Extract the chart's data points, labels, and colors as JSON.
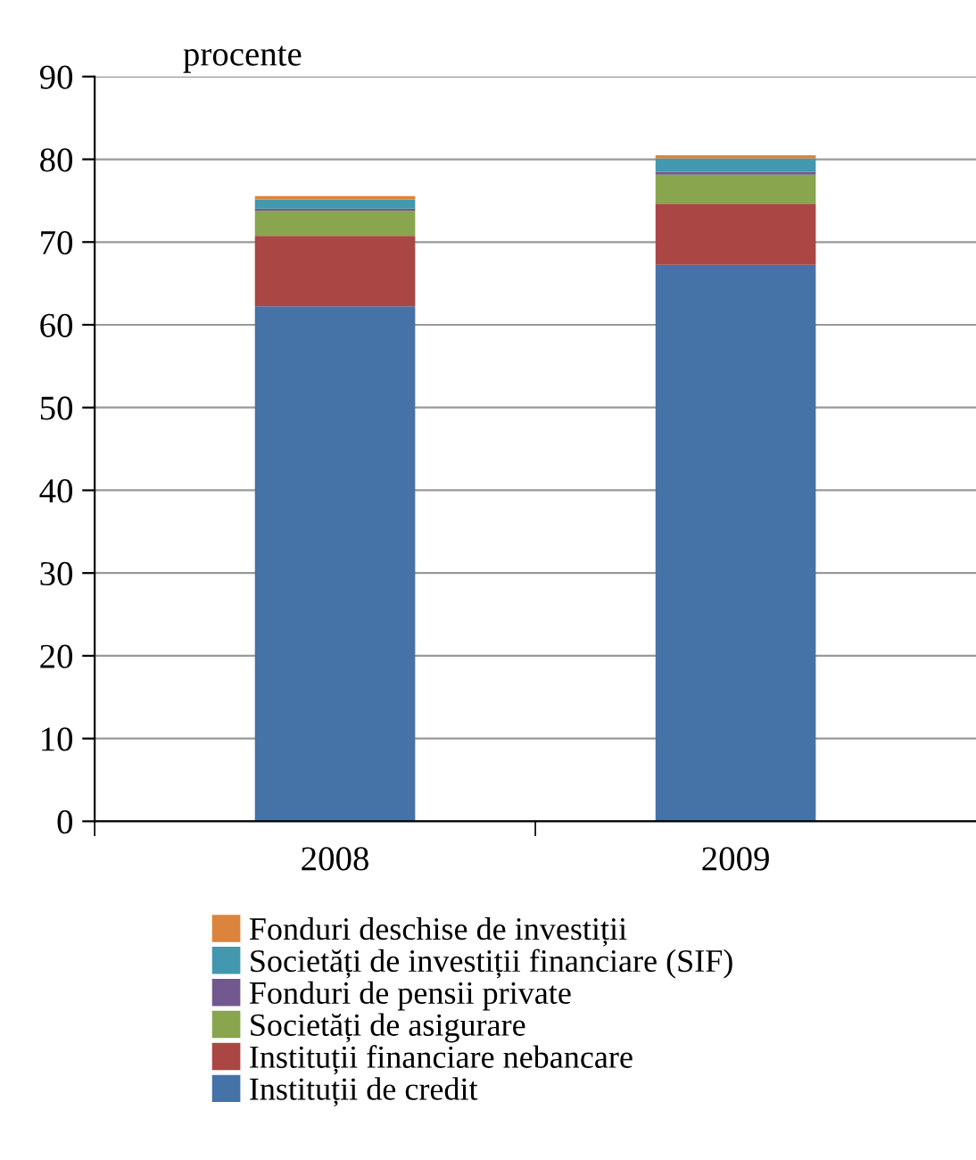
{
  "chart_data": {
    "type": "bar",
    "stacked": true,
    "ylabel": "procente",
    "categories": [
      "2008",
      "2009"
    ],
    "series": [
      {
        "name": "Instituții de credit",
        "color": "#4572a7",
        "values": [
          62.25,
          67.25
        ]
      },
      {
        "name": "Instituții financiare nebancare",
        "color": "#aa4643",
        "values": [
          8.5,
          7.4
        ]
      },
      {
        "name": "Societăți de asigurare",
        "color": "#89a54e",
        "values": [
          3.05,
          3.5
        ]
      },
      {
        "name": "Fonduri de pensii private",
        "color": "#71588f",
        "values": [
          0.25,
          0.35
        ]
      },
      {
        "name": "Societăți de investiții financiare (SIF)",
        "color": "#4198af",
        "values": [
          1.1,
          1.6
        ]
      },
      {
        "name": "Fonduri deschise de investiții",
        "color": "#db843d",
        "values": [
          0.4,
          0.4
        ]
      }
    ],
    "ylim": [
      0,
      90
    ],
    "yticks": [
      0,
      10,
      20,
      30,
      40,
      50,
      60,
      70,
      80,
      90
    ],
    "grid": "y",
    "legend": "bottom"
  }
}
